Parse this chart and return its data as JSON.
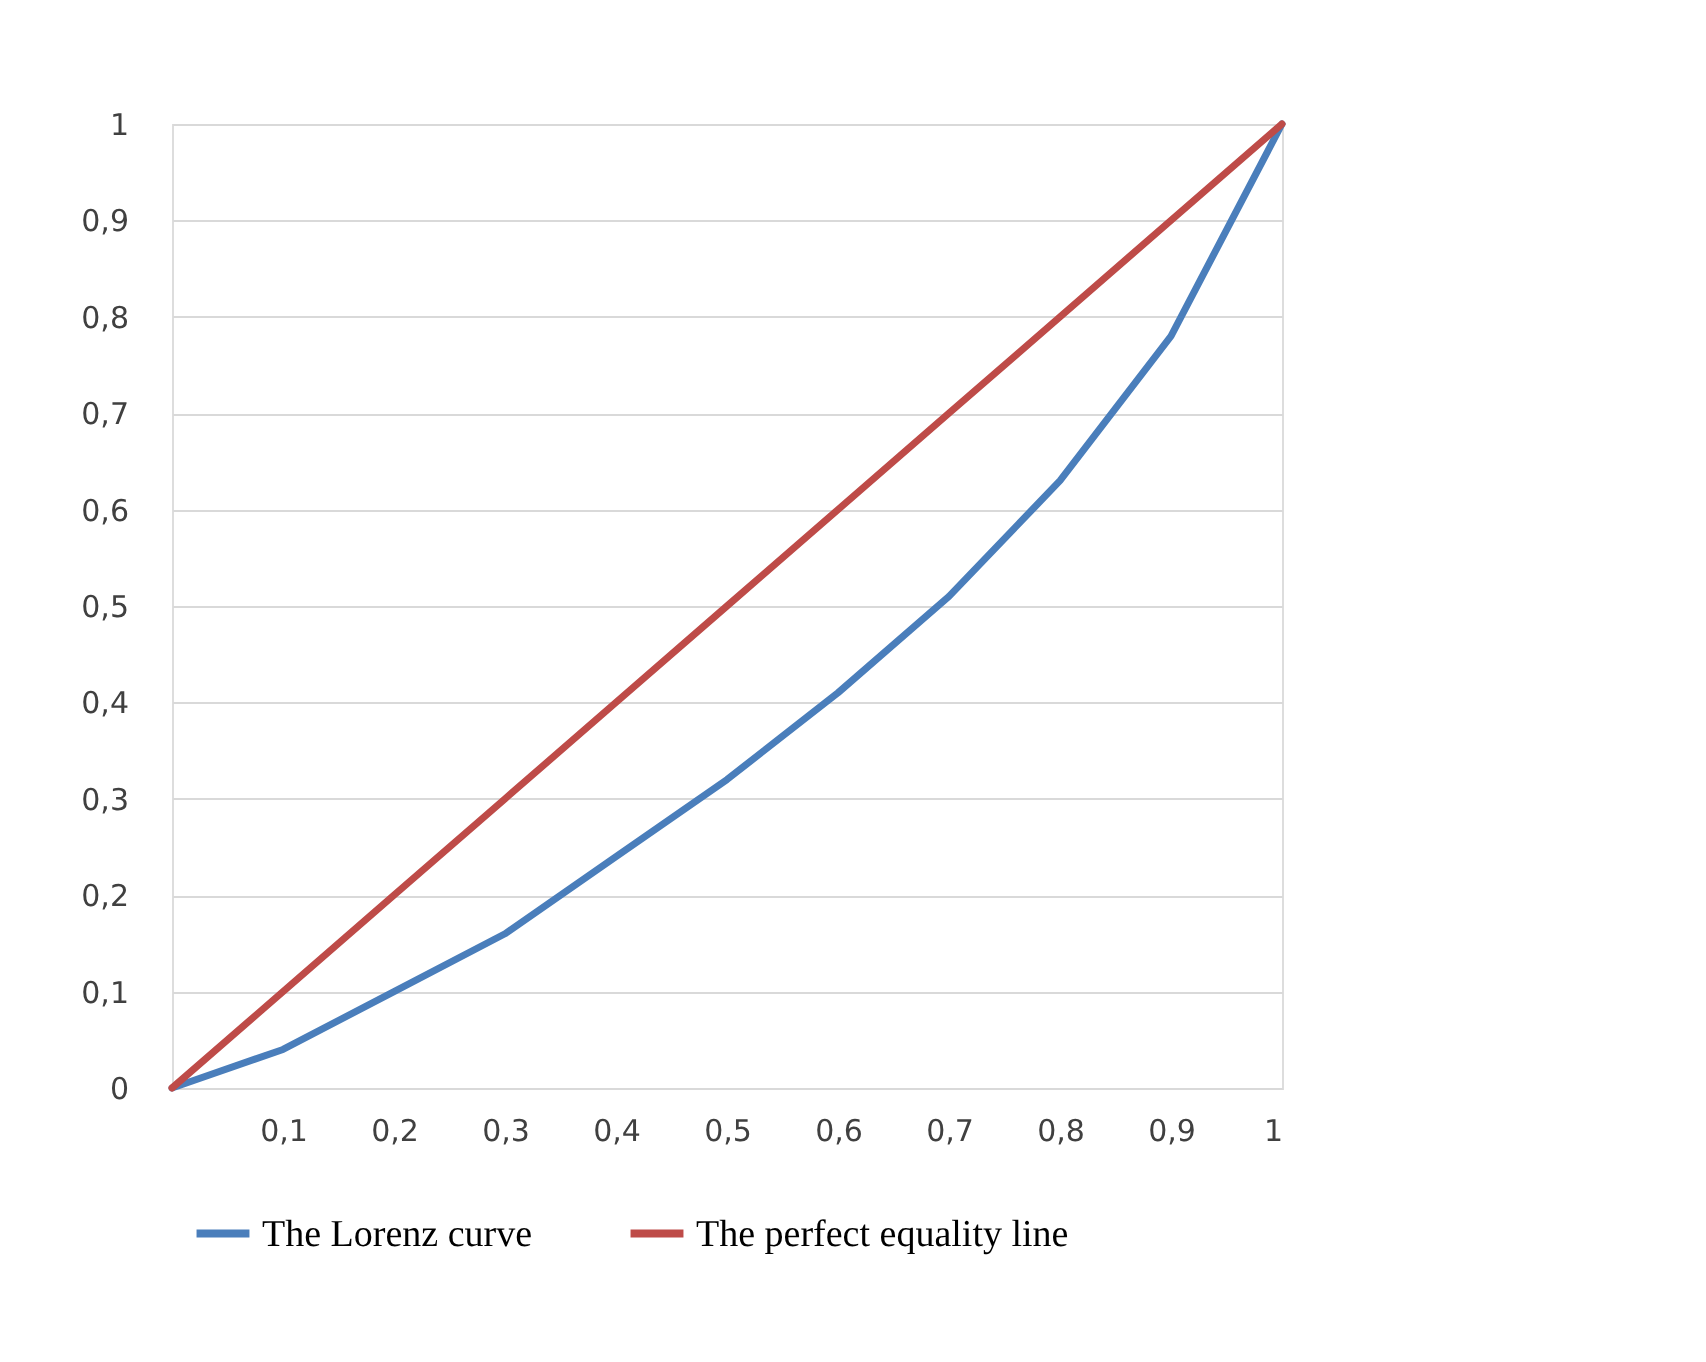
{
  "chart_data": {
    "type": "line",
    "x": [
      0,
      0.1,
      0.2,
      0.3,
      0.4,
      0.5,
      0.6,
      0.7,
      0.8,
      0.9,
      1
    ],
    "series": [
      {
        "name": "The Lorenz curve",
        "color": "#4a7ebb",
        "values": [
          0,
          0.04,
          0.1,
          0.16,
          0.24,
          0.32,
          0.41,
          0.51,
          0.63,
          0.78,
          1
        ]
      },
      {
        "name": "The perfect equality line",
        "color": "#be4b48",
        "values": [
          0,
          0.1,
          0.2,
          0.3,
          0.4,
          0.5,
          0.6,
          0.7,
          0.8,
          0.9,
          1
        ]
      }
    ],
    "xlim": [
      0,
      1
    ],
    "ylim": [
      0,
      1
    ],
    "xticks": [
      {
        "value": 0.1,
        "label": "0,1"
      },
      {
        "value": 0.2,
        "label": "0,2"
      },
      {
        "value": 0.3,
        "label": "0,3"
      },
      {
        "value": 0.4,
        "label": "0,4"
      },
      {
        "value": 0.5,
        "label": "0,5"
      },
      {
        "value": 0.6,
        "label": "0,6"
      },
      {
        "value": 0.7,
        "label": "0,7"
      },
      {
        "value": 0.8,
        "label": "0,8"
      },
      {
        "value": 0.9,
        "label": "0,9"
      },
      1
    ],
    "yticks": [
      0,
      {
        "value": 0.1,
        "label": "0,1"
      },
      {
        "value": 0.2,
        "label": "0,2"
      },
      {
        "value": 0.3,
        "label": "0,3"
      },
      {
        "value": 0.4,
        "label": "0,4"
      },
      {
        "value": 0.5,
        "label": "0,5"
      },
      {
        "value": 0.6,
        "label": "0,6"
      },
      {
        "value": 0.7,
        "label": "0,7"
      },
      {
        "value": 0.8,
        "label": "0,8"
      },
      {
        "value": 0.9,
        "label": "0,9"
      },
      1
    ],
    "grid": "y",
    "legend": "bottom",
    "marker": "none",
    "line_style": "solid"
  }
}
